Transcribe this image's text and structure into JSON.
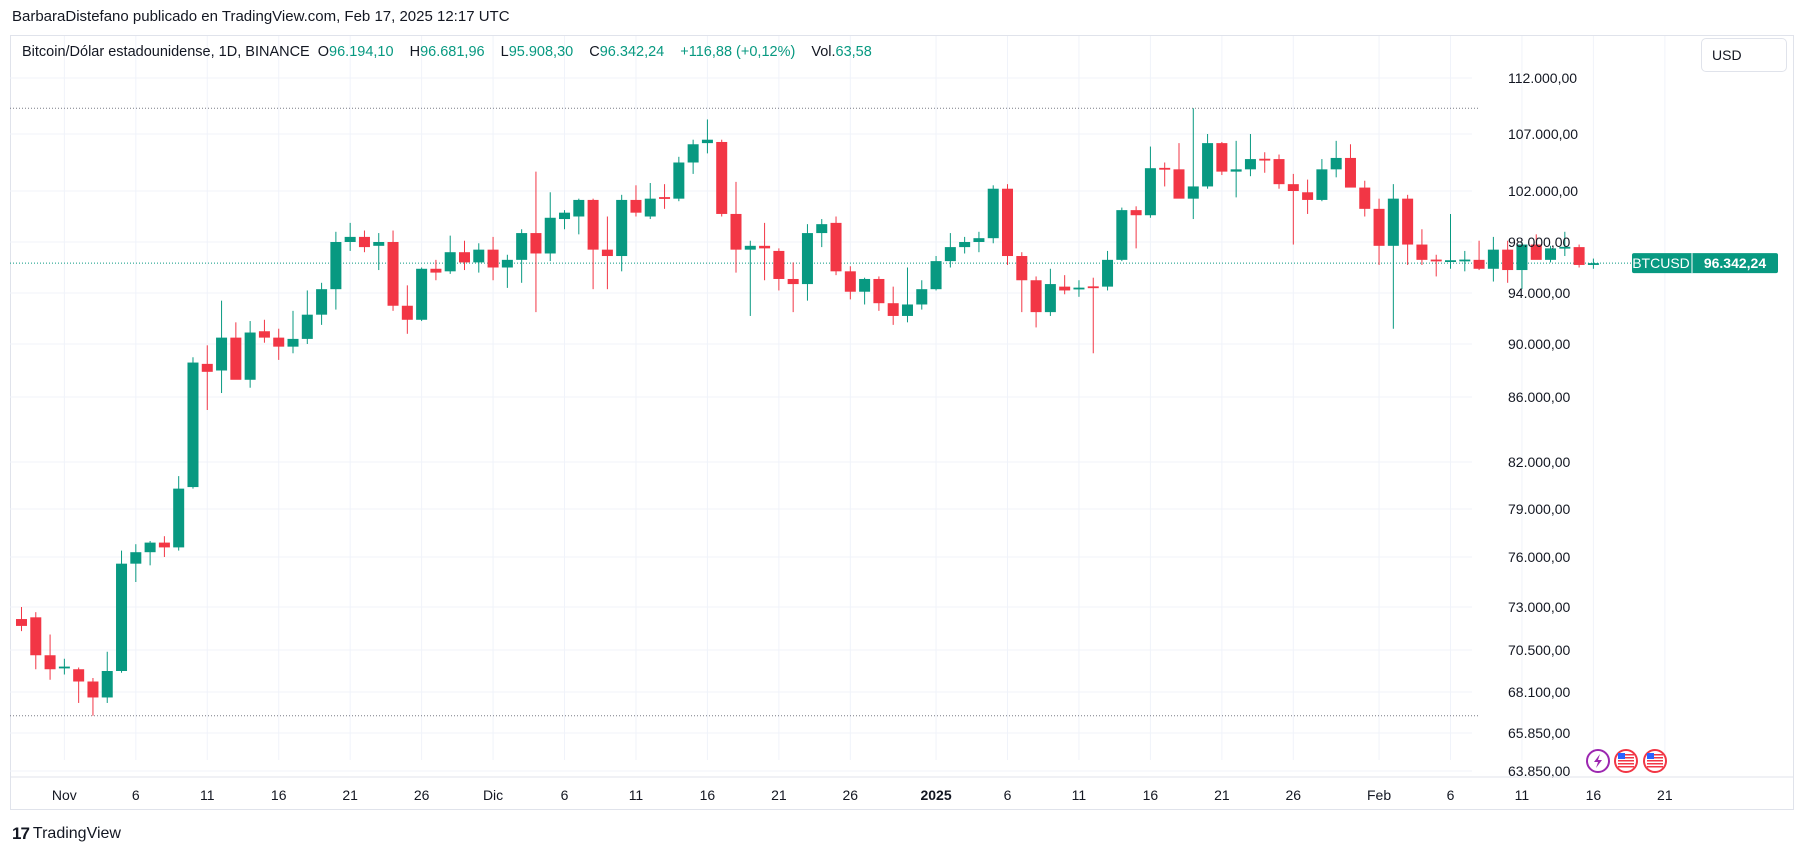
{
  "attribution": "BarbaraDistefano publicado en TradingView.com, Feb 17, 2025 12:17 UTC",
  "legend": {
    "symbol": "Bitcoin/Dólar estadounidense, 1D, BINANCE",
    "o_label": "O",
    "o_value": "96.194,10",
    "h_label": "H",
    "h_value": "96.681,96",
    "l_label": "L",
    "l_value": "95.908,30",
    "c_label": "C",
    "c_value": "96.342,24",
    "change": "+116,88 (+0,12%)",
    "vol_label": "Vol.",
    "vol_value": "63,58"
  },
  "currency_button": "USD",
  "price_tag": {
    "symbol": "BTCUSD",
    "value": "96.342,24"
  },
  "footer": {
    "logo_mark": "17",
    "logo_text": "TradingView"
  },
  "colors": {
    "up": "#089981",
    "down": "#f23645",
    "grid": "#f0f3fa",
    "text": "#131722"
  },
  "icons": [
    "lightning-icon",
    "us-flag-icon",
    "us-flag-icon"
  ],
  "chart_data": {
    "type": "candlestick",
    "ticker": "BTCUSD",
    "last_price": 96342.24,
    "start_date": "2024-10-29",
    "y_tick_labels": [
      "112.000,00",
      "107.000,00",
      "102.000,00",
      "98.000,00",
      "94.000,00",
      "90.000,00",
      "86.000,00",
      "82.000,00",
      "79.000,00",
      "76.000,00",
      "73.000,00",
      "70.500,00",
      "68.100,00",
      "65.850,00",
      "63.850,00"
    ],
    "y_ticks": [
      112000,
      107000,
      102000,
      98000,
      94000,
      90000,
      86000,
      82000,
      79000,
      76000,
      73000,
      70500,
      68100,
      65850,
      63850
    ],
    "x_tick_labels": [
      "Nov",
      "6",
      "11",
      "16",
      "21",
      "26",
      "Dic",
      "6",
      "11",
      "16",
      "21",
      "26",
      "2025",
      "6",
      "11",
      "16",
      "21",
      "26",
      "Feb",
      "6",
      "11",
      "16",
      "21"
    ],
    "x_tick_dates": [
      "2024-11-01",
      "2024-11-06",
      "2024-11-11",
      "2024-11-16",
      "2024-11-21",
      "2024-11-26",
      "2024-12-01",
      "2024-12-06",
      "2024-12-11",
      "2024-12-16",
      "2024-12-21",
      "2024-12-26",
      "2025-01-01",
      "2025-01-06",
      "2025-01-11",
      "2025-01-16",
      "2025-01-21",
      "2025-01-26",
      "2025-02-01",
      "2025-02-06",
      "2025-02-11",
      "2025-02-16",
      "2025-02-21"
    ],
    "range_high": 109300,
    "range_low": 66800,
    "candles": [
      {
        "o": 72300,
        "h": 73000,
        "l": 71600,
        "c": 71900
      },
      {
        "o": 72400,
        "h": 72700,
        "l": 69400,
        "c": 70200
      },
      {
        "o": 70200,
        "h": 71400,
        "l": 68800,
        "c": 69400
      },
      {
        "o": 69500,
        "h": 70000,
        "l": 69100,
        "c": 69500
      },
      {
        "o": 69400,
        "h": 69500,
        "l": 67500,
        "c": 68700
      },
      {
        "o": 68700,
        "h": 68900,
        "l": 66800,
        "c": 67800
      },
      {
        "o": 67800,
        "h": 70400,
        "l": 67500,
        "c": 69300
      },
      {
        "o": 69300,
        "h": 76400,
        "l": 69200,
        "c": 75600
      },
      {
        "o": 75600,
        "h": 76800,
        "l": 74500,
        "c": 76300
      },
      {
        "o": 76300,
        "h": 77000,
        "l": 75500,
        "c": 76900
      },
      {
        "o": 76900,
        "h": 77300,
        "l": 76000,
        "c": 76600
      },
      {
        "o": 76600,
        "h": 81100,
        "l": 76400,
        "c": 80300
      },
      {
        "o": 80400,
        "h": 89000,
        "l": 80300,
        "c": 88600
      },
      {
        "o": 88500,
        "h": 89900,
        "l": 85200,
        "c": 87900
      },
      {
        "o": 88000,
        "h": 93400,
        "l": 86300,
        "c": 90500
      },
      {
        "o": 90500,
        "h": 91700,
        "l": 87400,
        "c": 87300
      },
      {
        "o": 87300,
        "h": 91800,
        "l": 86700,
        "c": 90900
      },
      {
        "o": 91000,
        "h": 91900,
        "l": 90100,
        "c": 90500
      },
      {
        "o": 90500,
        "h": 91200,
        "l": 88800,
        "c": 89800
      },
      {
        "o": 89800,
        "h": 92600,
        "l": 89300,
        "c": 90400
      },
      {
        "o": 90400,
        "h": 94200,
        "l": 90000,
        "c": 92300
      },
      {
        "o": 92300,
        "h": 94800,
        "l": 91500,
        "c": 94300
      },
      {
        "o": 94300,
        "h": 98800,
        "l": 92700,
        "c": 98000
      },
      {
        "o": 98000,
        "h": 99500,
        "l": 97300,
        "c": 98400
      },
      {
        "o": 98400,
        "h": 98900,
        "l": 97200,
        "c": 97600
      },
      {
        "o": 97700,
        "h": 98700,
        "l": 95800,
        "c": 98000
      },
      {
        "o": 98000,
        "h": 98900,
        "l": 92600,
        "c": 93000
      },
      {
        "o": 93000,
        "h": 94600,
        "l": 90800,
        "c": 91900
      },
      {
        "o": 91900,
        "h": 96000,
        "l": 91800,
        "c": 95900
      },
      {
        "o": 95900,
        "h": 96600,
        "l": 95000,
        "c": 95600
      },
      {
        "o": 95700,
        "h": 98500,
        "l": 95500,
        "c": 97200
      },
      {
        "o": 97200,
        "h": 98100,
        "l": 95800,
        "c": 96400
      },
      {
        "o": 96400,
        "h": 97900,
        "l": 95600,
        "c": 97400
      },
      {
        "o": 97400,
        "h": 98400,
        "l": 95000,
        "c": 96000
      },
      {
        "o": 96000,
        "h": 97000,
        "l": 94400,
        "c": 96600
      },
      {
        "o": 96600,
        "h": 99000,
        "l": 94800,
        "c": 98700
      },
      {
        "o": 98700,
        "h": 103700,
        "l": 92500,
        "c": 97100
      },
      {
        "o": 97100,
        "h": 101900,
        "l": 96500,
        "c": 99900
      },
      {
        "o": 99800,
        "h": 100500,
        "l": 99000,
        "c": 100300
      },
      {
        "o": 100000,
        "h": 101400,
        "l": 98600,
        "c": 101300
      },
      {
        "o": 101300,
        "h": 101400,
        "l": 94300,
        "c": 97400
      },
      {
        "o": 97400,
        "h": 100000,
        "l": 94300,
        "c": 96900
      },
      {
        "o": 96900,
        "h": 101700,
        "l": 95700,
        "c": 101300
      },
      {
        "o": 101300,
        "h": 102500,
        "l": 100000,
        "c": 100300
      },
      {
        "o": 100000,
        "h": 102700,
        "l": 99800,
        "c": 101400
      },
      {
        "o": 101500,
        "h": 102600,
        "l": 100600,
        "c": 101400
      },
      {
        "o": 101400,
        "h": 105000,
        "l": 101200,
        "c": 104500
      },
      {
        "o": 104500,
        "h": 106500,
        "l": 103500,
        "c": 106100
      },
      {
        "o": 106200,
        "h": 108300,
        "l": 105300,
        "c": 106500
      },
      {
        "o": 106300,
        "h": 106500,
        "l": 100000,
        "c": 100200
      },
      {
        "o": 100200,
        "h": 102800,
        "l": 95600,
        "c": 97400
      },
      {
        "o": 97400,
        "h": 98100,
        "l": 92200,
        "c": 97700
      },
      {
        "o": 97700,
        "h": 99500,
        "l": 95000,
        "c": 97500
      },
      {
        "o": 97300,
        "h": 97500,
        "l": 94200,
        "c": 95100
      },
      {
        "o": 95100,
        "h": 96400,
        "l": 92500,
        "c": 94700
      },
      {
        "o": 94700,
        "h": 99400,
        "l": 93400,
        "c": 98700
      },
      {
        "o": 98700,
        "h": 99800,
        "l": 97600,
        "c": 99400
      },
      {
        "o": 99500,
        "h": 100000,
        "l": 95400,
        "c": 95700
      },
      {
        "o": 95700,
        "h": 96100,
        "l": 93500,
        "c": 94100
      },
      {
        "o": 94100,
        "h": 95200,
        "l": 93100,
        "c": 95100
      },
      {
        "o": 95100,
        "h": 95300,
        "l": 92600,
        "c": 93200
      },
      {
        "o": 93200,
        "h": 94500,
        "l": 91500,
        "c": 92200
      },
      {
        "o": 92200,
        "h": 96000,
        "l": 91700,
        "c": 93100
      },
      {
        "o": 93100,
        "h": 95000,
        "l": 92700,
        "c": 94300
      },
      {
        "o": 94300,
        "h": 96900,
        "l": 94200,
        "c": 96500
      },
      {
        "o": 96500,
        "h": 98700,
        "l": 96000,
        "c": 97600
      },
      {
        "o": 97600,
        "h": 98400,
        "l": 97100,
        "c": 98000
      },
      {
        "o": 98000,
        "h": 98800,
        "l": 97200,
        "c": 98300
      },
      {
        "o": 98300,
        "h": 102500,
        "l": 97900,
        "c": 102200
      },
      {
        "o": 102200,
        "h": 102600,
        "l": 96200,
        "c": 96900
      },
      {
        "o": 96900,
        "h": 97200,
        "l": 92500,
        "c": 95000
      },
      {
        "o": 95000,
        "h": 95300,
        "l": 91300,
        "c": 92500
      },
      {
        "o": 92500,
        "h": 95900,
        "l": 92200,
        "c": 94700
      },
      {
        "o": 94500,
        "h": 95400,
        "l": 93900,
        "c": 94200
      },
      {
        "o": 94300,
        "h": 95000,
        "l": 93700,
        "c": 94400
      },
      {
        "o": 94500,
        "h": 95200,
        "l": 89300,
        "c": 94400
      },
      {
        "o": 94500,
        "h": 97300,
        "l": 94200,
        "c": 96600
      },
      {
        "o": 96600,
        "h": 100700,
        "l": 96500,
        "c": 100500
      },
      {
        "o": 100500,
        "h": 100800,
        "l": 97500,
        "c": 100100
      },
      {
        "o": 100100,
        "h": 105900,
        "l": 99900,
        "c": 104000
      },
      {
        "o": 104000,
        "h": 104500,
        "l": 102400,
        "c": 103900
      },
      {
        "o": 103900,
        "h": 106200,
        "l": 101600,
        "c": 101400
      },
      {
        "o": 101400,
        "h": 109300,
        "l": 99800,
        "c": 102400
      },
      {
        "o": 102400,
        "h": 107000,
        "l": 102200,
        "c": 106200
      },
      {
        "o": 106200,
        "h": 106300,
        "l": 103400,
        "c": 103700
      },
      {
        "o": 103700,
        "h": 106400,
        "l": 101500,
        "c": 103900
      },
      {
        "o": 103900,
        "h": 107000,
        "l": 103300,
        "c": 104800
      },
      {
        "o": 104800,
        "h": 105400,
        "l": 103600,
        "c": 104700
      },
      {
        "o": 104800,
        "h": 105200,
        "l": 102200,
        "c": 102600
      },
      {
        "o": 102600,
        "h": 103500,
        "l": 97800,
        "c": 102000
      },
      {
        "o": 101900,
        "h": 103000,
        "l": 100200,
        "c": 101300
      },
      {
        "o": 101300,
        "h": 104800,
        "l": 101200,
        "c": 103900
      },
      {
        "o": 103900,
        "h": 106400,
        "l": 103200,
        "c": 104900
      },
      {
        "o": 104900,
        "h": 106100,
        "l": 102500,
        "c": 102300
      },
      {
        "o": 102300,
        "h": 102900,
        "l": 100000,
        "c": 100600
      },
      {
        "o": 100600,
        "h": 101400,
        "l": 96200,
        "c": 97700
      },
      {
        "o": 97700,
        "h": 102600,
        "l": 91200,
        "c": 101400
      },
      {
        "o": 101400,
        "h": 101700,
        "l": 96200,
        "c": 97800
      },
      {
        "o": 97800,
        "h": 99000,
        "l": 96200,
        "c": 96600
      },
      {
        "o": 96600,
        "h": 97000,
        "l": 95300,
        "c": 96500
      },
      {
        "o": 96500,
        "h": 100200,
        "l": 95900,
        "c": 96500
      },
      {
        "o": 96500,
        "h": 97300,
        "l": 95700,
        "c": 96600
      },
      {
        "o": 96600,
        "h": 98100,
        "l": 95800,
        "c": 95900
      },
      {
        "o": 95900,
        "h": 98400,
        "l": 94900,
        "c": 97400
      },
      {
        "o": 97400,
        "h": 98100,
        "l": 94800,
        "c": 95800
      },
      {
        "o": 95800,
        "h": 98000,
        "l": 94300,
        "c": 97800
      },
      {
        "o": 97800,
        "h": 98600,
        "l": 96700,
        "c": 96600
      },
      {
        "o": 96600,
        "h": 97700,
        "l": 96400,
        "c": 97500
      },
      {
        "o": 97500,
        "h": 98800,
        "l": 96900,
        "c": 97600
      },
      {
        "o": 97600,
        "h": 97800,
        "l": 96000,
        "c": 96200
      },
      {
        "o": 96200,
        "h": 96700,
        "l": 95900,
        "c": 96342
      }
    ]
  }
}
